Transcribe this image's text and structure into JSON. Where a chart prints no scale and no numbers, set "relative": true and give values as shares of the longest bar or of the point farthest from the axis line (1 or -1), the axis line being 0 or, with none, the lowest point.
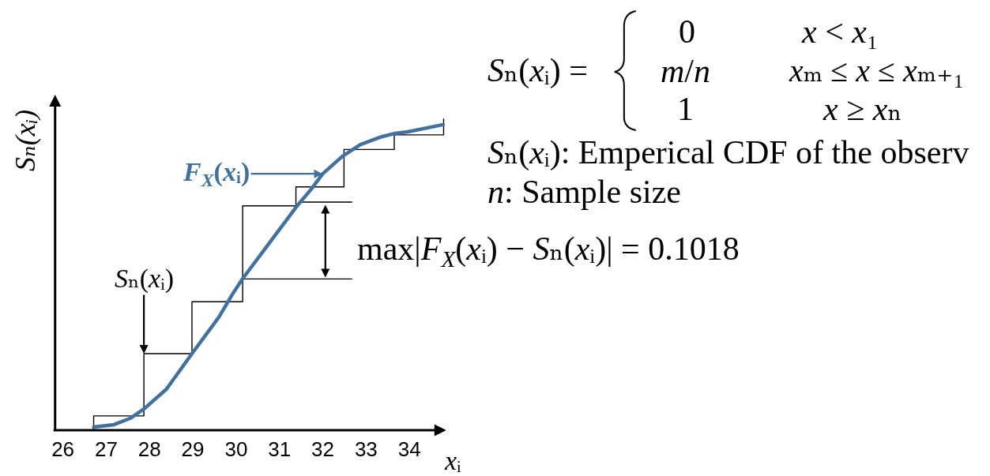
{
  "chart_data": {
    "type": "line",
    "relative": true,
    "xlabel": "xᵢ",
    "ylabel": "Sₙ(xᵢ)",
    "xlim": [
      25.82,
      34.85
    ],
    "xticks": [
      26,
      27,
      28,
      29,
      30,
      31,
      32,
      33,
      34
    ],
    "tick_labels": "x",
    "series": [
      {
        "color": "#000000",
        "x": [
          31.45,
          32.67
        ],
        "values": [
          0.733,
          0.733
        ]
      },
      {
        "color": "#000000",
        "x": [
          30.15,
          32.67
        ],
        "values": [
          0.486,
          0.486
        ]
      },
      {
        "type": "step",
        "color": "#000000",
        "x": [
          26.71,
          26.71,
          27.87,
          28.98,
          30.15,
          31.38,
          32.49,
          33.65,
          34.79
        ],
        "values": [
          0,
          0.046,
          0.246,
          0.413,
          0.721,
          0.782,
          0.902,
          0.949,
          1.0
        ]
      },
      {
        "color": "#41719c",
        "x": [
          26.71,
          27.18,
          27.55,
          27.87,
          28.39,
          28.98,
          29.6,
          29.91,
          30.15,
          30.64,
          31.42,
          31.73,
          32.0,
          32.45,
          32.87,
          33.36,
          33.67,
          33.96,
          34.78
        ],
        "values": [
          0.01,
          0.018,
          0.038,
          0.068,
          0.132,
          0.246,
          0.363,
          0.436,
          0.487,
          0.578,
          0.723,
          0.774,
          0.824,
          0.88,
          0.918,
          0.943,
          0.954,
          0.959,
          0.982
        ]
      }
    ],
    "annotations": [
      "Sₙ(xᵢ) =",
      "0",
      "x < x₁",
      "m/n",
      "xₘ ≤ x ≤ xₘ₊₁",
      "1",
      "x ≥ xₙ",
      "Sₙ(xᵢ): Emperical CDF of the observ",
      "n: Sample size",
      "max|F$_{X}$(xᵢ) − Sₙ(xᵢ)| = 0.1018",
      {
        "text": "F$_{X}$(xᵢ)",
        "x": 32.0,
        "y": 0.824
      },
      {
        "text": "Sₙ(xᵢ)",
        "x": 27.87,
        "y": 0.246
      }
    ]
  }
}
